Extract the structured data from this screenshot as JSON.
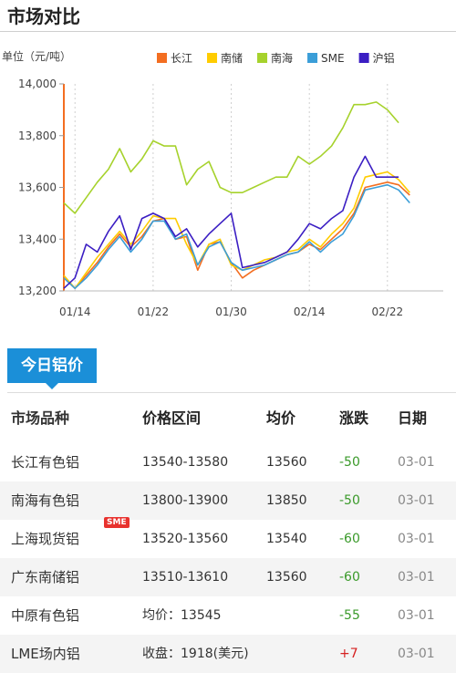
{
  "page": {
    "title": "市场对比"
  },
  "chart_data": {
    "type": "line",
    "ylabel": "单位（元/吨）",
    "ylim": [
      13200,
      14000
    ],
    "yticks": [
      "13,200",
      "13,400",
      "13,600",
      "13,800",
      "14,000"
    ],
    "yticks_values": [
      13200,
      13400,
      13600,
      13800,
      14000
    ],
    "xticks": [
      "01/14",
      "01/22",
      "01/30",
      "02/14",
      "02/22"
    ],
    "xticks_index": [
      1,
      8,
      15,
      22,
      29
    ],
    "n": 35,
    "legend_position": "top",
    "grid": "vertical dotted",
    "series": [
      {
        "name": "长江",
        "color": "#f36e21",
        "values": [
          13250,
          13210,
          13260,
          13310,
          13370,
          13420,
          13370,
          13410,
          13470,
          13480,
          13400,
          13410,
          13280,
          13380,
          13390,
          13310,
          13250,
          13280,
          13300,
          13320,
          13340,
          13350,
          13380,
          13360,
          13400,
          13440,
          13500,
          13600,
          13610,
          13620,
          13610,
          13570
        ]
      },
      {
        "name": "南储",
        "color": "#ffcc00",
        "values": [
          13260,
          13210,
          13270,
          13330,
          13380,
          13430,
          13380,
          13430,
          13490,
          13480,
          13480,
          13380,
          13300,
          13380,
          13400,
          13300,
          13280,
          13300,
          13320,
          13330,
          13350,
          13360,
          13400,
          13370,
          13420,
          13460,
          13520,
          13640,
          13650,
          13660,
          13630,
          13580
        ]
      },
      {
        "name": "南海",
        "color": "#a6d22c",
        "values": [
          13540,
          13500,
          13560,
          13620,
          13670,
          13750,
          13660,
          13710,
          13780,
          13760,
          13760,
          13610,
          13670,
          13700,
          13600,
          13580,
          13580,
          13600,
          13620,
          13640,
          13640,
          13720,
          13690,
          13720,
          13760,
          13830,
          13920,
          13920,
          13930,
          13900,
          13850
        ]
      },
      {
        "name": "SME",
        "color": "#3b9ed8",
        "values": [
          13250,
          13210,
          13250,
          13300,
          13360,
          13410,
          13350,
          13400,
          13470,
          13470,
          13400,
          13420,
          13300,
          13370,
          13390,
          13310,
          13280,
          13290,
          13300,
          13320,
          13340,
          13350,
          13390,
          13350,
          13390,
          13420,
          13490,
          13590,
          13600,
          13610,
          13590,
          13540
        ]
      },
      {
        "name": "沪铝",
        "color": "#3b1ec3",
        "values": [
          13210,
          13250,
          13380,
          13350,
          13430,
          13490,
          13360,
          13480,
          13500,
          13480,
          13410,
          13440,
          13370,
          13420,
          13460,
          13500,
          13290,
          13300,
          13310,
          13330,
          13350,
          13400,
          13460,
          13440,
          13480,
          13510,
          13640,
          13720,
          13640,
          13640,
          13640
        ]
      }
    ]
  },
  "tab": {
    "label": "今日铝价"
  },
  "table": {
    "headers": [
      "市场品种",
      "价格区间",
      "均价",
      "涨跌",
      "日期"
    ],
    "rows": [
      {
        "name": "长江有色铝",
        "range": "13540-13580",
        "avg": "13560",
        "change": "-50",
        "dir": "down",
        "date": "03-01"
      },
      {
        "name": "南海有色铝",
        "range": "13800-13900",
        "avg": "13850",
        "change": "-50",
        "dir": "down",
        "date": "03-01"
      },
      {
        "name": "上海现货铝",
        "badge": "SME",
        "range": "13520-13560",
        "avg": "13540",
        "change": "-60",
        "dir": "down",
        "date": "03-01"
      },
      {
        "name": "广东南储铝",
        "range": "13510-13610",
        "avg": "13560",
        "change": "-60",
        "dir": "down",
        "date": "03-01"
      },
      {
        "name": "中原有色铝",
        "range": "均价：13545",
        "avg": "",
        "change": "-55",
        "dir": "down",
        "date": "03-01"
      },
      {
        "name": "LME场内铝",
        "range": "收盘：1918(美元)",
        "avg": "",
        "change": "+7",
        "dir": "up",
        "date": "03-01"
      }
    ]
  }
}
